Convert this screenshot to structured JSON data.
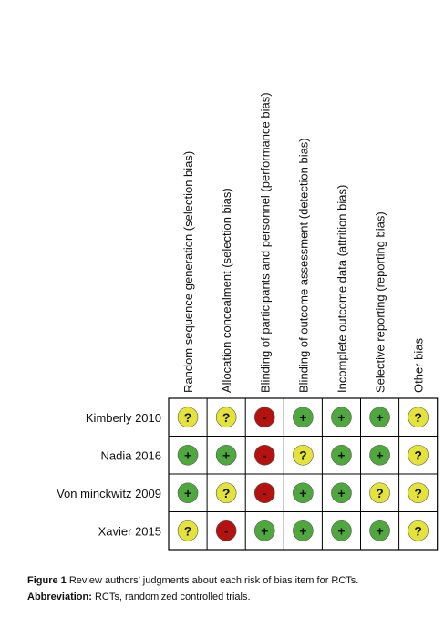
{
  "columns": [
    "Random sequence generation (selection bias)",
    "Allocation concealment (selection bias)",
    "Blinding of participants and personnel (performance bias)",
    "Blinding of outcome assessment (detection bias)",
    "Incomplete outcome data (attrition bias)",
    "Selective reporting (reporting bias)",
    "Other bias"
  ],
  "rows": [
    {
      "study": "Kimberly 2010",
      "judgments": [
        "?",
        "?",
        "-",
        "+",
        "+",
        "+",
        "?"
      ]
    },
    {
      "study": "Nadia 2016",
      "judgments": [
        "+",
        "+",
        "-",
        "?",
        "+",
        "+",
        "?"
      ]
    },
    {
      "study": "Von minckwitz 2009",
      "judgments": [
        "+",
        "?",
        "-",
        "+",
        "+",
        "?",
        "?"
      ]
    },
    {
      "study": "Xavier 2015",
      "judgments": [
        "?",
        "-",
        "+",
        "+",
        "+",
        "+",
        "?"
      ]
    }
  ],
  "judgment_colors": {
    "+": "#4fa83d",
    "-": "#b3120f",
    "?": "#e4e33a"
  },
  "caption": {
    "label": "Figure 1",
    "text": " Review authors’ judgments about each risk of bias item for RCTs.",
    "abbr_label": "Abbreviation:",
    "abbr_text": " RCTs, randomized controlled trials."
  }
}
